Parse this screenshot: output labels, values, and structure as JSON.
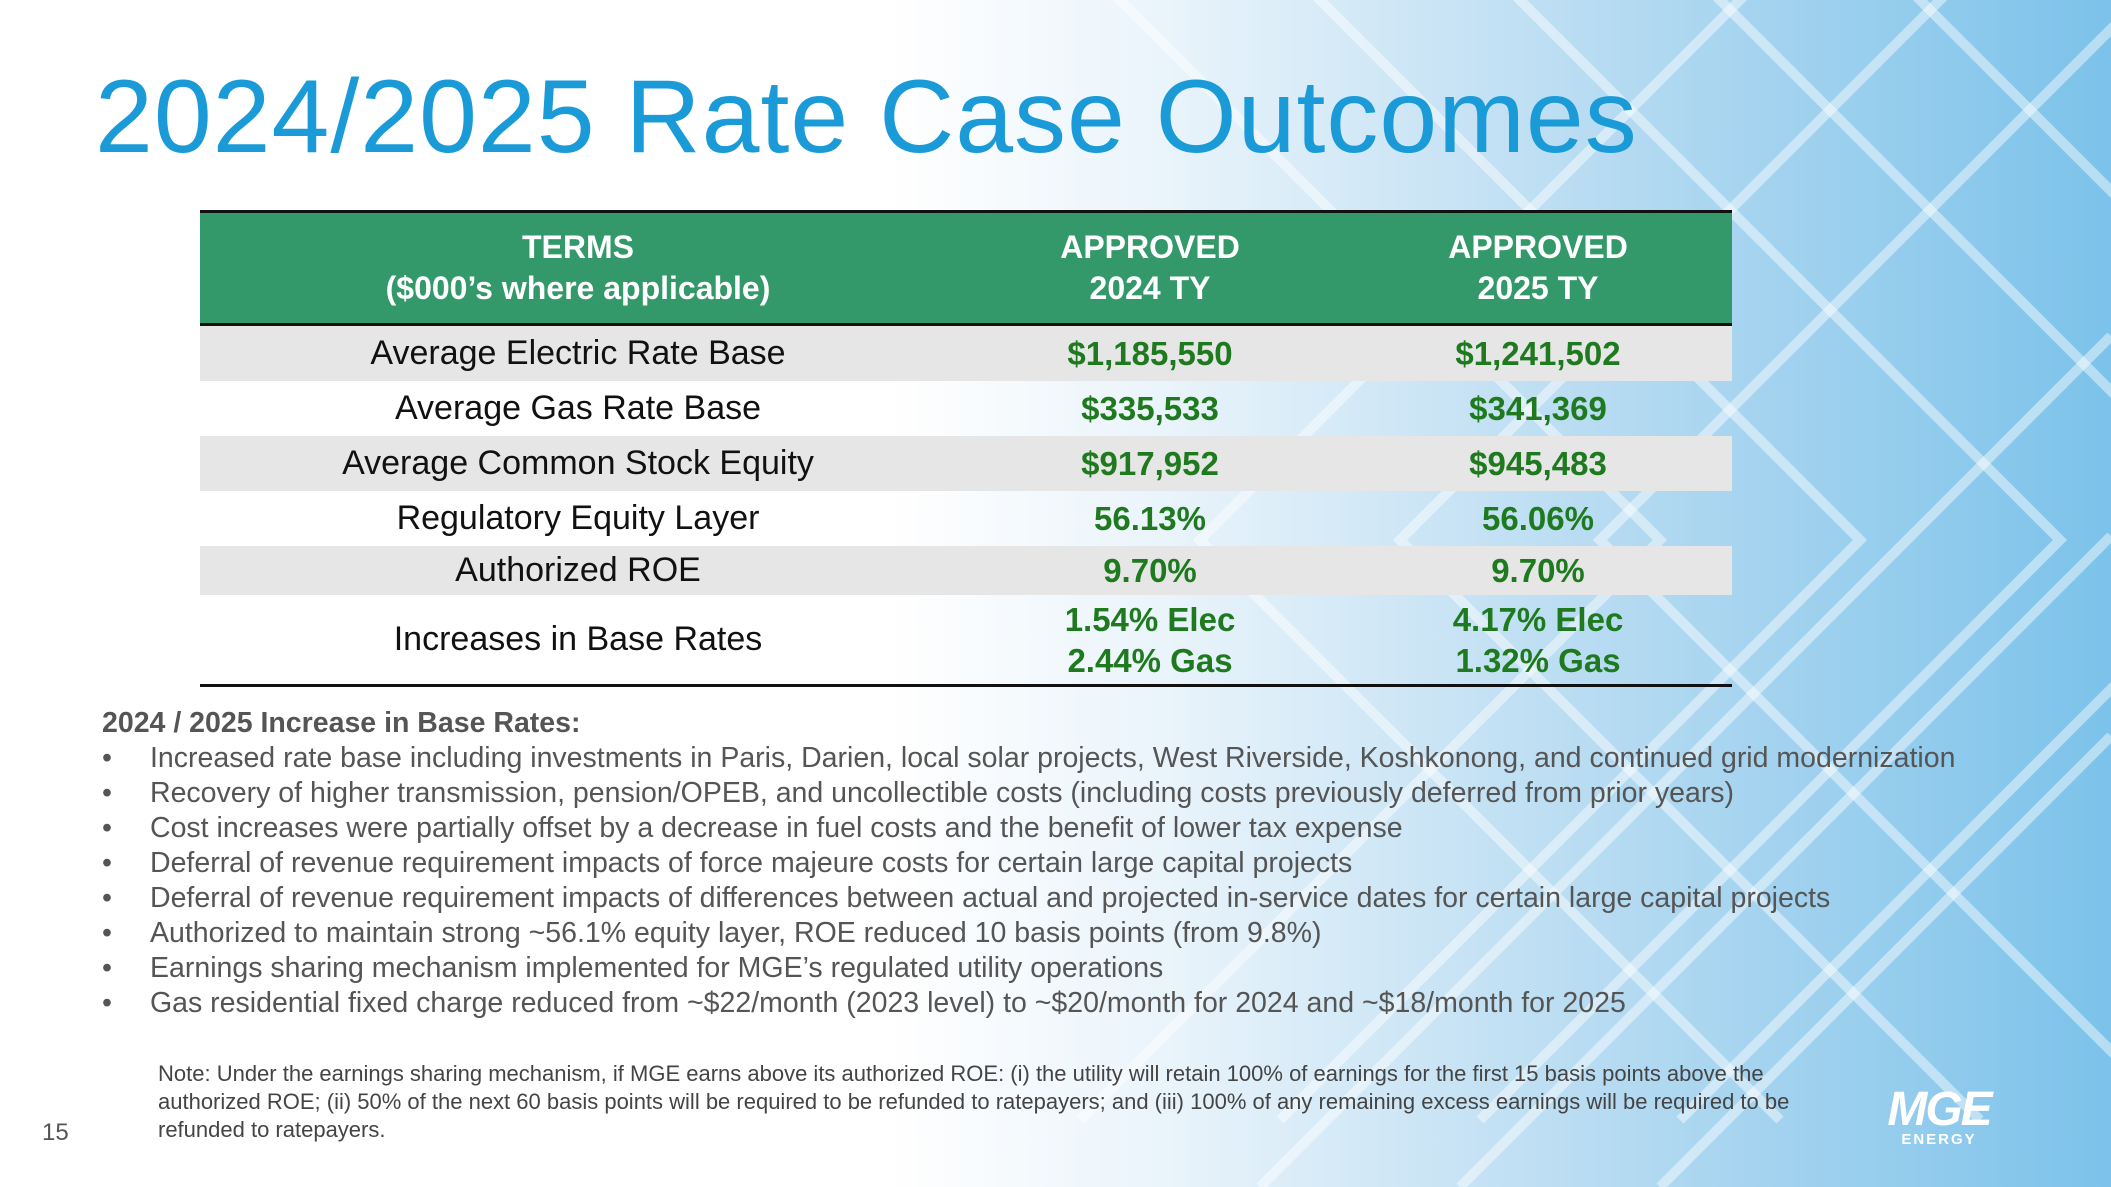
{
  "slide": {
    "title": "2024/2025 Rate Case Outcomes",
    "page_number": "15"
  },
  "table": {
    "headers": [
      [
        "TERMS",
        "($000’s where applicable)"
      ],
      [
        "APPROVED",
        "2024 TY"
      ],
      [
        "APPROVED",
        "2025 TY"
      ]
    ],
    "rows": [
      {
        "label": "Average Electric Rate Base",
        "v2024": "$1,185,550",
        "v2025": "$1,241,502"
      },
      {
        "label": "Average Gas Rate Base",
        "v2024": "$335,533",
        "v2025": "$341,369"
      },
      {
        "label": "Average Common Stock Equity",
        "v2024": "$917,952",
        "v2025": "$945,483"
      },
      {
        "label": "Regulatory Equity Layer",
        "v2024": "56.13%",
        "v2025": "56.06%"
      },
      {
        "label": "Authorized ROE",
        "v2024": "9.70%",
        "v2025": "9.70%"
      },
      {
        "label": "Increases in Base Rates",
        "v2024": [
          "1.54% Elec",
          "2.44% Gas"
        ],
        "v2025": [
          "4.17% Elec",
          "1.32% Gas"
        ]
      }
    ]
  },
  "increase_section": {
    "heading": "2024 / 2025 Increase in Base Rates:",
    "bullets": [
      "Increased rate base including investments in Paris, Darien, local solar projects, West Riverside, Koshkonong, and continued grid modernization",
      "Recovery of higher transmission, pension/OPEB, and uncollectible costs (including costs previously deferred from prior years)",
      "Cost increases were partially offset by a decrease in fuel costs and the benefit of lower tax expense",
      "Deferral of revenue requirement impacts of force majeure costs for certain large capital projects",
      "Deferral of revenue requirement impacts of differences between actual and projected in-service dates for certain large capital projects",
      "Authorized to maintain strong ~56.1% equity layer, ROE reduced 10 basis points (from 9.8%)",
      "Earnings sharing mechanism implemented for MGE’s regulated utility operations",
      "Gas residential fixed charge reduced from ~$22/month (2023 level) to ~$20/month for 2024 and ~$18/month for 2025"
    ]
  },
  "note": "Note: Under the earnings sharing mechanism, if MGE earns above its authorized ROE: (i) the utility will retain 100% of earnings for the first 15 basis points above the authorized ROE; (ii) 50% of the next 60 basis points will be required to be refunded to ratepayers; and (iii) 100% of any remaining excess earnings will be required to be refunded to ratepayers.",
  "logo": {
    "wordmark": "MGE",
    "subtext": "ENERGY"
  }
}
